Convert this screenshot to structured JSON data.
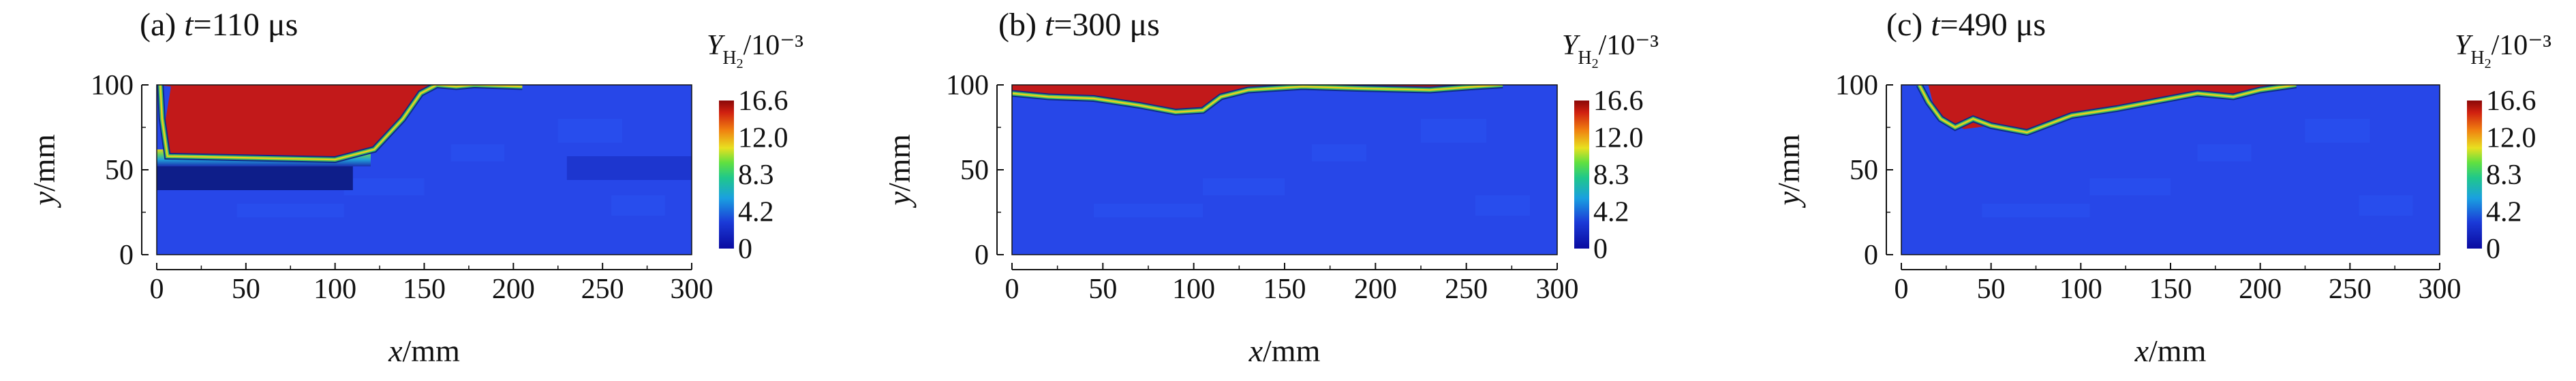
{
  "figure": {
    "colors": {
      "background": "#2747e8",
      "dark_band": "#0e1e8a",
      "red": "#c2191a",
      "axis": "#111111"
    }
  },
  "chart_data": [
    {
      "type": "heatmap",
      "panel_tag": "(a)",
      "time_symbol": "t",
      "time_value": "=110 μs",
      "xlabel_var": "x",
      "xlabel_unit": "/mm",
      "ylabel_var": "y",
      "ylabel_unit": "/mm",
      "x_ticks": [
        "0",
        "50",
        "100",
        "150",
        "200",
        "250",
        "300"
      ],
      "y_ticks": [
        "0",
        "50",
        "100"
      ],
      "xlim": [
        0,
        300
      ],
      "ylim": [
        0,
        100
      ],
      "colorbar": {
        "title_var": "Y",
        "title_sub": "H",
        "title_sub2": "2",
        "title_rest": "/10⁻³",
        "ticks": [
          "16.6",
          "12.0",
          "8.3",
          "4.2",
          "0"
        ],
        "range": [
          0,
          16.6
        ]
      },
      "red_region": [
        [
          0,
          100
        ],
        [
          8,
          99
        ],
        [
          5,
          80
        ],
        [
          4,
          62
        ],
        [
          10,
          56
        ],
        [
          100,
          56
        ],
        [
          120,
          60
        ],
        [
          135,
          75
        ],
        [
          145,
          92
        ],
        [
          155,
          99
        ],
        [
          160,
          100
        ]
      ],
      "front_line": [
        [
          2,
          100
        ],
        [
          3,
          80
        ],
        [
          6,
          58
        ],
        [
          100,
          56
        ],
        [
          122,
          62
        ],
        [
          138,
          80
        ],
        [
          148,
          95
        ],
        [
          157,
          100
        ],
        [
          168,
          99
        ],
        [
          178,
          100
        ],
        [
          205,
          99
        ]
      ]
    },
    {
      "type": "heatmap",
      "panel_tag": "(b)",
      "time_symbol": "t",
      "time_value": "=300 μs",
      "xlabel_var": "x",
      "xlabel_unit": "/mm",
      "ylabel_var": "y",
      "ylabel_unit": "/mm",
      "x_ticks": [
        "0",
        "50",
        "100",
        "150",
        "200",
        "250",
        "300"
      ],
      "y_ticks": [
        "0",
        "50",
        "100"
      ],
      "xlim": [
        0,
        300
      ],
      "ylim": [
        0,
        100
      ],
      "colorbar": {
        "title_var": "Y",
        "title_sub": "H",
        "title_sub2": "2",
        "title_rest": "/10⁻³",
        "ticks": [
          "16.6",
          "12.0",
          "8.3",
          "4.2",
          "0"
        ],
        "range": [
          0,
          16.6
        ]
      },
      "red_region": [
        [
          0,
          100
        ],
        [
          0,
          95
        ],
        [
          20,
          93
        ],
        [
          45,
          92
        ],
        [
          70,
          88
        ],
        [
          90,
          84
        ],
        [
          105,
          85
        ],
        [
          115,
          93
        ],
        [
          130,
          97
        ],
        [
          160,
          99
        ],
        [
          190,
          98
        ],
        [
          230,
          97
        ],
        [
          255,
          99
        ],
        [
          270,
          100
        ]
      ],
      "front_line": [
        [
          0,
          95
        ],
        [
          20,
          93
        ],
        [
          45,
          92
        ],
        [
          70,
          88
        ],
        [
          90,
          84
        ],
        [
          105,
          85
        ],
        [
          115,
          93
        ],
        [
          130,
          97
        ],
        [
          160,
          99
        ],
        [
          190,
          98
        ],
        [
          230,
          97
        ],
        [
          255,
          99
        ],
        [
          270,
          100
        ]
      ]
    },
    {
      "type": "heatmap",
      "panel_tag": "(c)",
      "time_symbol": "t",
      "time_value": "=490 μs",
      "xlabel_var": "x",
      "xlabel_unit": "/mm",
      "ylabel_var": "y",
      "ylabel_unit": "/mm",
      "x_ticks": [
        "0",
        "50",
        "100",
        "150",
        "200",
        "250",
        "300"
      ],
      "y_ticks": [
        "0",
        "50",
        "100"
      ],
      "xlim": [
        0,
        300
      ],
      "ylim": [
        0,
        100
      ],
      "colorbar": {
        "title_var": "Y",
        "title_sub": "H",
        "title_sub2": "2",
        "title_rest": "/10⁻³",
        "ticks": [
          "16.6",
          "12.0",
          "8.3",
          "4.2",
          "0"
        ],
        "range": [
          0,
          16.6
        ]
      },
      "red_region": [
        [
          15,
          100
        ],
        [
          18,
          88
        ],
        [
          25,
          78
        ],
        [
          35,
          74
        ],
        [
          50,
          76
        ],
        [
          70,
          72
        ],
        [
          95,
          82
        ],
        [
          120,
          86
        ],
        [
          150,
          92
        ],
        [
          165,
          95
        ],
        [
          185,
          93
        ],
        [
          200,
          97
        ],
        [
          220,
          100
        ]
      ],
      "front_line": [
        [
          10,
          100
        ],
        [
          15,
          90
        ],
        [
          22,
          80
        ],
        [
          30,
          75
        ],
        [
          40,
          80
        ],
        [
          50,
          76
        ],
        [
          70,
          72
        ],
        [
          95,
          82
        ],
        [
          120,
          86
        ],
        [
          150,
          92
        ],
        [
          165,
          95
        ],
        [
          185,
          93
        ],
        [
          200,
          97
        ],
        [
          220,
          100
        ]
      ]
    }
  ]
}
